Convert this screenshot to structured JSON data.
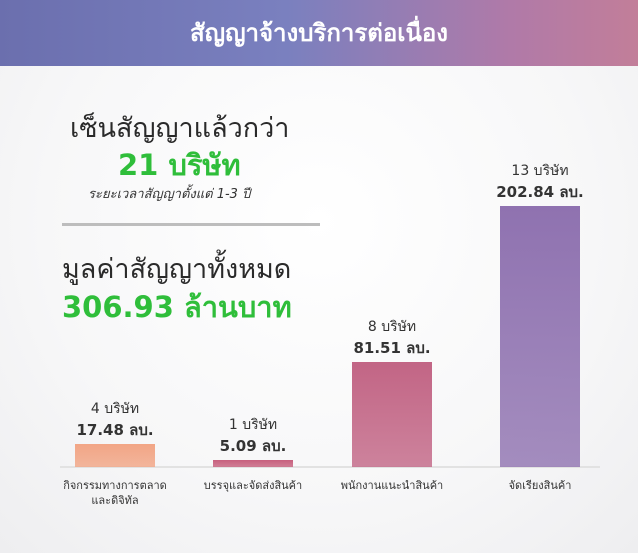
{
  "chart_data": {
    "type": "bar",
    "title": "สัญญาจ้างบริการต่อเนื่อง",
    "summary": {
      "signed_heading": "เซ็นสัญญาแล้วกว่า",
      "signed_count": "21 บริษัท",
      "signed_note": "ระยะเวลาสัญญาตั้งแต่ 1-3 ปี",
      "total_heading": "มูลค่าสัญญาทั้งหมด",
      "total_value": "306.93 ล้านบาท"
    },
    "categories": [
      "กิจกรรมทางการตลาด และดิจิทัล",
      "บรรจุและจัดส่งสินค้า",
      "พนักงานแนะนำสินค้า",
      "จัดเรียงสินค้า"
    ],
    "values": [
      17.48,
      5.09,
      81.51,
      202.84
    ],
    "value_labels": [
      "17.48 ลบ.",
      "5.09 ลบ.",
      "81.51 ลบ.",
      "202.84 ลบ."
    ],
    "bar_annotations": [
      "4 บริษัท",
      "1 บริษัท",
      "8 บริษัท",
      "13 บริษัท"
    ],
    "colors": [
      "#f2a585",
      "#c7607e",
      "#c26585",
      "#8f72b0"
    ],
    "ylim": [
      0,
      205
    ]
  }
}
